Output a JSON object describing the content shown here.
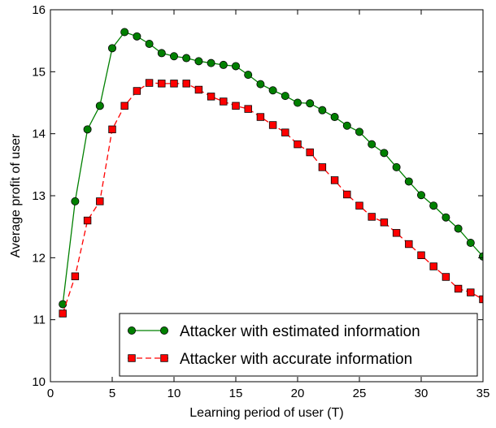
{
  "chart_data": {
    "type": "line",
    "xlabel": "Learning period of user (T)",
    "ylabel": "Average profit of user",
    "xlim": [
      0,
      35
    ],
    "ylim": [
      10,
      16
    ],
    "xticks": [
      0,
      5,
      10,
      15,
      20,
      25,
      30,
      35
    ],
    "yticks": [
      10,
      11,
      12,
      13,
      14,
      15,
      16
    ],
    "xtick_labels": [
      "0",
      "5",
      "10",
      "15",
      "20",
      "25",
      "30",
      "35"
    ],
    "ytick_labels": [
      "10",
      "11",
      "12",
      "13",
      "14",
      "15",
      "16"
    ],
    "grid": false,
    "legend_position": "bottom-right",
    "series": [
      {
        "name": "Attacker with estimated information",
        "color": "#008000",
        "marker": "circle",
        "line_style": "solid",
        "x": [
          1,
          2,
          3,
          4,
          5,
          6,
          7,
          8,
          9,
          10,
          11,
          12,
          13,
          14,
          15,
          16,
          17,
          18,
          19,
          20,
          21,
          22,
          23,
          24,
          25,
          26,
          27,
          28,
          29,
          30,
          31,
          32,
          33,
          34,
          35
        ],
        "values": [
          11.25,
          12.91,
          14.07,
          14.45,
          15.38,
          15.64,
          15.57,
          15.45,
          15.3,
          15.25,
          15.22,
          15.17,
          15.14,
          15.11,
          15.09,
          14.95,
          14.8,
          14.7,
          14.61,
          14.5,
          14.49,
          14.38,
          14.27,
          14.13,
          14.03,
          13.83,
          13.69,
          13.46,
          13.23,
          13.01,
          12.84,
          12.65,
          12.47,
          12.24,
          12.02
        ]
      },
      {
        "name": "Attacker with accurate information",
        "color": "#ff0000",
        "marker": "square",
        "line_style": "dashed",
        "x": [
          1,
          2,
          3,
          4,
          5,
          6,
          7,
          8,
          9,
          10,
          11,
          12,
          13,
          14,
          15,
          16,
          17,
          18,
          19,
          20,
          21,
          22,
          23,
          24,
          25,
          26,
          27,
          28,
          29,
          30,
          31,
          32,
          33,
          34,
          35
        ],
        "values": [
          11.1,
          11.7,
          12.6,
          12.91,
          14.07,
          14.45,
          14.69,
          14.82,
          14.81,
          14.81,
          14.81,
          14.71,
          14.6,
          14.52,
          14.45,
          14.4,
          14.27,
          14.14,
          14.02,
          13.83,
          13.7,
          13.46,
          13.25,
          13.02,
          12.84,
          12.66,
          12.57,
          12.4,
          12.22,
          12.04,
          11.86,
          11.69,
          11.5,
          11.44,
          11.33
        ]
      }
    ]
  }
}
